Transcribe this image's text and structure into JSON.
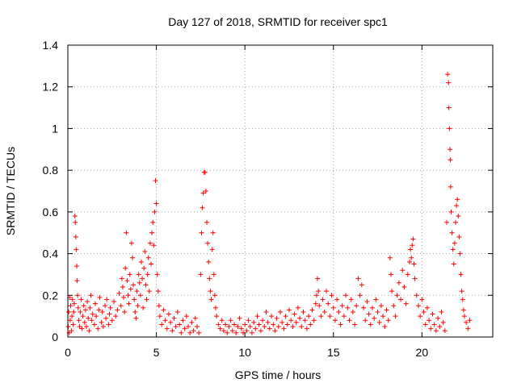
{
  "chart_data": {
    "type": "scatter",
    "title": "Day 127 of 2018, SRMTID for receiver spc1",
    "xlabel": "GPS time / hours",
    "ylabel": "SRMTID / TECUs",
    "xlim": [
      0,
      24
    ],
    "ylim": [
      0,
      1.4
    ],
    "grid": true,
    "marker": "+",
    "marker_color": "#ff0000",
    "xticks": [
      {
        "value": 0,
        "label": "0"
      },
      {
        "value": 5,
        "label": "5"
      },
      {
        "value": 10,
        "label": "10"
      },
      {
        "value": 15,
        "label": "15"
      },
      {
        "value": 20,
        "label": "20"
      }
    ],
    "yticks": [
      {
        "value": 0,
        "label": "0"
      },
      {
        "value": 0.2,
        "label": "0.2"
      },
      {
        "value": 0.4,
        "label": "0.4"
      },
      {
        "value": 0.6,
        "label": "0.6"
      },
      {
        "value": 0.8,
        "label": "0.8"
      },
      {
        "value": 1.0,
        "label": "1"
      },
      {
        "value": 1.2,
        "label": "1.2"
      },
      {
        "value": 1.4,
        "label": "1.4"
      }
    ],
    "series": [
      {
        "name": "SRMTID",
        "points": [
          [
            0.02,
            0.05
          ],
          [
            0.05,
            0.12
          ],
          [
            0.08,
            0.02
          ],
          [
            0.1,
            0.19
          ],
          [
            0.13,
            0.08
          ],
          [
            0.16,
            0.15
          ],
          [
            0.2,
            0.03
          ],
          [
            0.23,
            0.1
          ],
          [
            0.26,
            0.18
          ],
          [
            0.3,
            0.06
          ],
          [
            0.33,
            0.12
          ],
          [
            0.36,
            0.16
          ],
          [
            0.4,
            0.58
          ],
          [
            0.42,
            0.55
          ],
          [
            0.45,
            0.48
          ],
          [
            0.47,
            0.42
          ],
          [
            0.5,
            0.34
          ],
          [
            0.52,
            0.27
          ],
          [
            0.55,
            0.2
          ],
          [
            0.58,
            0.14
          ],
          [
            0.62,
            0.08
          ],
          [
            0.66,
            0.05
          ],
          [
            0.7,
            0.12
          ],
          [
            0.75,
            0.18
          ],
          [
            0.8,
            0.04
          ],
          [
            0.85,
            0.1
          ],
          [
            0.9,
            0.15
          ],
          [
            0.95,
            0.07
          ],
          [
            1.0,
            0.13
          ],
          [
            1.05,
            0.05
          ],
          [
            1.1,
            0.17
          ],
          [
            1.15,
            0.09
          ],
          [
            1.2,
            0.03
          ],
          [
            1.25,
            0.14
          ],
          [
            1.3,
            0.2
          ],
          [
            1.35,
            0.08
          ],
          [
            1.4,
            0.11
          ],
          [
            1.5,
            0.06
          ],
          [
            1.55,
            0.16
          ],
          [
            1.6,
            0.1
          ],
          [
            1.7,
            0.04
          ],
          [
            1.75,
            0.13
          ],
          [
            1.8,
            0.19
          ],
          [
            1.9,
            0.07
          ],
          [
            1.95,
            0.12
          ],
          [
            2.0,
            0.05
          ],
          [
            2.1,
            0.15
          ],
          [
            2.15,
            0.09
          ],
          [
            2.2,
            0.18
          ],
          [
            2.3,
            0.06
          ],
          [
            2.35,
            0.11
          ],
          [
            2.4,
            0.14
          ],
          [
            2.5,
            0.08
          ],
          [
            2.6,
            0.17
          ],
          [
            2.7,
            0.1
          ],
          [
            2.8,
            0.13
          ],
          [
            2.9,
            0.21
          ],
          [
            3.0,
            0.15
          ],
          [
            3.05,
            0.28
          ],
          [
            3.1,
            0.24
          ],
          [
            3.15,
            0.19
          ],
          [
            3.2,
            0.12
          ],
          [
            3.25,
            0.33
          ],
          [
            3.3,
            0.5
          ],
          [
            3.35,
            0.27
          ],
          [
            3.4,
            0.2
          ],
          [
            3.45,
            0.16
          ],
          [
            3.5,
            0.3
          ],
          [
            3.55,
            0.23
          ],
          [
            3.6,
            0.45
          ],
          [
            3.65,
            0.38
          ],
          [
            3.7,
            0.25
          ],
          [
            3.75,
            0.18
          ],
          [
            3.8,
            0.12
          ],
          [
            3.85,
            0.09
          ],
          [
            3.9,
            0.22
          ],
          [
            3.95,
            0.15
          ],
          [
            4.0,
            0.3
          ],
          [
            4.05,
            0.26
          ],
          [
            4.1,
            0.2
          ],
          [
            4.15,
            0.36
          ],
          [
            4.2,
            0.28
          ],
          [
            4.25,
            0.14
          ],
          [
            4.3,
            0.33
          ],
          [
            4.35,
            0.41
          ],
          [
            4.4,
            0.25
          ],
          [
            4.45,
            0.18
          ],
          [
            4.5,
            0.3
          ],
          [
            4.55,
            0.38
          ],
          [
            4.6,
            0.22
          ],
          [
            4.65,
            0.45
          ],
          [
            4.7,
            0.35
          ],
          [
            4.75,
            0.5
          ],
          [
            4.8,
            0.55
          ],
          [
            4.85,
            0.44
          ],
          [
            4.9,
            0.6
          ],
          [
            4.95,
            0.75
          ],
          [
            5.0,
            0.64
          ],
          [
            5.05,
            0.3
          ],
          [
            5.1,
            0.22
          ],
          [
            5.15,
            0.15
          ],
          [
            5.2,
            0.1
          ],
          [
            5.3,
            0.06
          ],
          [
            5.4,
            0.13
          ],
          [
            5.5,
            0.08
          ],
          [
            5.6,
            0.04
          ],
          [
            5.7,
            0.11
          ],
          [
            5.8,
            0.07
          ],
          [
            5.9,
            0.03
          ],
          [
            6.0,
            0.09
          ],
          [
            6.1,
            0.05
          ],
          [
            6.2,
            0.12
          ],
          [
            6.3,
            0.06
          ],
          [
            6.4,
            0.02
          ],
          [
            6.5,
            0.08
          ],
          [
            6.6,
            0.04
          ],
          [
            6.7,
            0.1
          ],
          [
            6.8,
            0.05
          ],
          [
            6.9,
            0.02
          ],
          [
            7.0,
            0.07
          ],
          [
            7.1,
            0.03
          ],
          [
            7.2,
            0.09
          ],
          [
            7.3,
            0.05
          ],
          [
            7.4,
            0.02
          ],
          [
            7.5,
            0.3
          ],
          [
            7.55,
            0.5
          ],
          [
            7.6,
            0.62
          ],
          [
            7.65,
            0.69
          ],
          [
            7.7,
            0.79
          ],
          [
            7.75,
            0.79
          ],
          [
            7.8,
            0.7
          ],
          [
            7.85,
            0.55
          ],
          [
            7.9,
            0.45
          ],
          [
            7.95,
            0.36
          ],
          [
            8.0,
            0.28
          ],
          [
            8.05,
            0.22
          ],
          [
            8.1,
            0.18
          ],
          [
            8.15,
            0.42
          ],
          [
            8.2,
            0.5
          ],
          [
            8.25,
            0.3
          ],
          [
            8.3,
            0.2
          ],
          [
            8.35,
            0.14
          ],
          [
            8.4,
            0.1
          ],
          [
            8.5,
            0.06
          ],
          [
            8.6,
            0.04
          ],
          [
            8.7,
            0.08
          ],
          [
            8.8,
            0.03
          ],
          [
            8.9,
            0.06
          ],
          [
            9.0,
            0.02
          ],
          [
            9.1,
            0.05
          ],
          [
            9.2,
            0.08
          ],
          [
            9.3,
            0.03
          ],
          [
            9.4,
            0.06
          ],
          [
            9.5,
            0.02
          ],
          [
            9.6,
            0.05
          ],
          [
            9.7,
            0.09
          ],
          [
            9.8,
            0.04
          ],
          [
            9.9,
            0.02
          ],
          [
            10.0,
            0.06
          ],
          [
            10.1,
            0.03
          ],
          [
            10.2,
            0.08
          ],
          [
            10.3,
            0.05
          ],
          [
            10.4,
            0.02
          ],
          [
            10.5,
            0.07
          ],
          [
            10.6,
            0.04
          ],
          [
            10.7,
            0.1
          ],
          [
            10.8,
            0.06
          ],
          [
            10.9,
            0.03
          ],
          [
            11.0,
            0.08
          ],
          [
            11.1,
            0.05
          ],
          [
            11.2,
            0.12
          ],
          [
            11.3,
            0.07
          ],
          [
            11.4,
            0.04
          ],
          [
            11.5,
            0.1
          ],
          [
            11.6,
            0.06
          ],
          [
            11.7,
            0.03
          ],
          [
            11.8,
            0.09
          ],
          [
            11.9,
            0.05
          ],
          [
            12.0,
            0.12
          ],
          [
            12.1,
            0.07
          ],
          [
            12.2,
            0.04
          ],
          [
            12.3,
            0.1
          ],
          [
            12.4,
            0.06
          ],
          [
            12.5,
            0.13
          ],
          [
            12.6,
            0.08
          ],
          [
            12.7,
            0.05
          ],
          [
            12.8,
            0.11
          ],
          [
            12.9,
            0.07
          ],
          [
            13.0,
            0.14
          ],
          [
            13.1,
            0.09
          ],
          [
            13.2,
            0.05
          ],
          [
            13.3,
            0.12
          ],
          [
            13.4,
            0.08
          ],
          [
            13.5,
            0.04
          ],
          [
            13.6,
            0.1
          ],
          [
            13.7,
            0.06
          ],
          [
            13.8,
            0.13
          ],
          [
            13.9,
            0.08
          ],
          [
            14.0,
            0.16
          ],
          [
            14.05,
            0.2
          ],
          [
            14.1,
            0.28
          ],
          [
            14.15,
            0.22
          ],
          [
            14.2,
            0.15
          ],
          [
            14.3,
            0.1
          ],
          [
            14.4,
            0.18
          ],
          [
            14.5,
            0.12
          ],
          [
            14.6,
            0.22
          ],
          [
            14.7,
            0.16
          ],
          [
            14.8,
            0.1
          ],
          [
            14.9,
            0.2
          ],
          [
            15.0,
            0.14
          ],
          [
            15.1,
            0.08
          ],
          [
            15.2,
            0.18
          ],
          [
            15.3,
            0.12
          ],
          [
            15.4,
            0.06
          ],
          [
            15.5,
            0.15
          ],
          [
            15.6,
            0.1
          ],
          [
            15.7,
            0.2
          ],
          [
            15.8,
            0.14
          ],
          [
            15.9,
            0.08
          ],
          [
            16.0,
            0.18
          ],
          [
            16.1,
            0.12
          ],
          [
            16.2,
            0.06
          ],
          [
            16.3,
            0.15
          ],
          [
            16.4,
            0.28
          ],
          [
            16.5,
            0.2
          ],
          [
            16.6,
            0.25
          ],
          [
            16.7,
            0.14
          ],
          [
            16.8,
            0.08
          ],
          [
            16.9,
            0.17
          ],
          [
            17.0,
            0.11
          ],
          [
            17.1,
            0.06
          ],
          [
            17.2,
            0.14
          ],
          [
            17.3,
            0.09
          ],
          [
            17.4,
            0.18
          ],
          [
            17.5,
            0.12
          ],
          [
            17.6,
            0.07
          ],
          [
            17.7,
            0.15
          ],
          [
            17.8,
            0.1
          ],
          [
            17.9,
            0.05
          ],
          [
            18.0,
            0.13
          ],
          [
            18.1,
            0.08
          ],
          [
            18.2,
            0.38
          ],
          [
            18.25,
            0.3
          ],
          [
            18.3,
            0.22
          ],
          [
            18.4,
            0.15
          ],
          [
            18.5,
            0.1
          ],
          [
            18.6,
            0.2
          ],
          [
            18.7,
            0.26
          ],
          [
            18.8,
            0.18
          ],
          [
            18.9,
            0.32
          ],
          [
            19.0,
            0.24
          ],
          [
            19.1,
            0.16
          ],
          [
            19.2,
            0.3
          ],
          [
            19.3,
            0.36
          ],
          [
            19.35,
            0.42
          ],
          [
            19.4,
            0.38
          ],
          [
            19.45,
            0.44
          ],
          [
            19.5,
            0.47
          ],
          [
            19.55,
            0.35
          ],
          [
            19.6,
            0.28
          ],
          [
            19.7,
            0.2
          ],
          [
            19.8,
            0.15
          ],
          [
            19.9,
            0.1
          ],
          [
            20.0,
            0.18
          ],
          [
            20.1,
            0.12
          ],
          [
            20.2,
            0.06
          ],
          [
            20.3,
            0.14
          ],
          [
            20.4,
            0.08
          ],
          [
            20.5,
            0.04
          ],
          [
            20.6,
            0.11
          ],
          [
            20.7,
            0.06
          ],
          [
            20.8,
            0.03
          ],
          [
            20.9,
            0.09
          ],
          [
            21.0,
            0.05
          ],
          [
            21.1,
            0.12
          ],
          [
            21.2,
            0.07
          ],
          [
            21.3,
            0.03
          ],
          [
            21.4,
            0.55
          ],
          [
            21.45,
            1.26
          ],
          [
            21.5,
            1.22
          ],
          [
            21.52,
            1.1
          ],
          [
            21.55,
            1.0
          ],
          [
            21.58,
            0.9
          ],
          [
            21.6,
            0.85
          ],
          [
            21.62,
            0.72
          ],
          [
            21.65,
            0.6
          ],
          [
            21.7,
            0.5
          ],
          [
            21.75,
            0.42
          ],
          [
            21.8,
            0.35
          ],
          [
            21.85,
            0.45
          ],
          [
            21.9,
            0.55
          ],
          [
            21.95,
            0.63
          ],
          [
            22.0,
            0.66
          ],
          [
            22.05,
            0.58
          ],
          [
            22.1,
            0.48
          ],
          [
            22.15,
            0.4
          ],
          [
            22.2,
            0.3
          ],
          [
            22.25,
            0.22
          ],
          [
            22.3,
            0.18
          ],
          [
            22.35,
            0.13
          ],
          [
            22.4,
            0.1
          ],
          [
            22.5,
            0.07
          ],
          [
            22.6,
            0.04
          ],
          [
            22.7,
            0.08
          ]
        ]
      }
    ]
  }
}
